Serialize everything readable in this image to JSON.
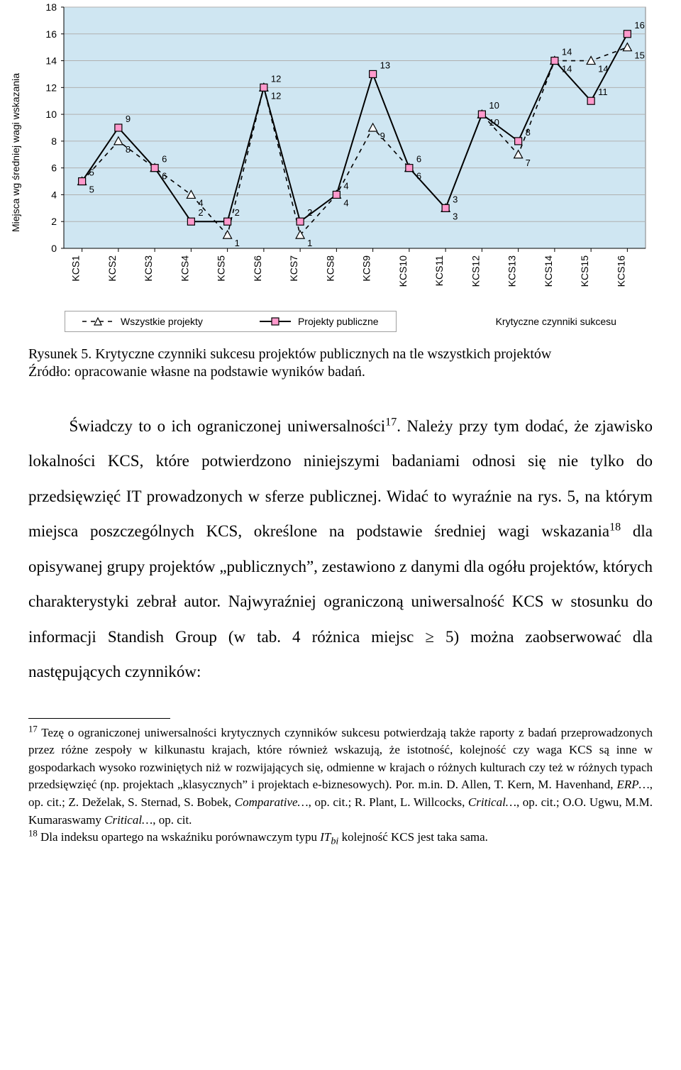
{
  "chart": {
    "type": "line",
    "background_color": "#cfe6f2",
    "grid_color": "#b0b0b0",
    "border_color": "#808080",
    "ylabel": "Miejsca wg średniej wagi wskazania",
    "ylabel_fontsize": 14,
    "axis_font": "Arial",
    "axis_fontsize": 14,
    "ylim": [
      0,
      18
    ],
    "ytick_step": 2,
    "categories": [
      "KCS1",
      "KCS2",
      "KCS3",
      "KCS4",
      "KCS5",
      "KCS6",
      "KCS7",
      "KCS8",
      "KCS9",
      "KCS10",
      "KCS11",
      "KCS12",
      "KCS13",
      "KCS14",
      "KCS15",
      "KCS16"
    ],
    "series": [
      {
        "name": "Wszystkie projekty",
        "color": "#000000",
        "dash": "6,6",
        "line_width": 1.6,
        "marker": "triangle",
        "marker_fill": "#ffffff",
        "marker_stroke": "#000000",
        "values": [
          5,
          8,
          6,
          4,
          1,
          12,
          1,
          4,
          9,
          6,
          3,
          10,
          7,
          14,
          14,
          15
        ]
      },
      {
        "name": "Projekty publiczne",
        "color": "#000000",
        "dash": "none",
        "line_width": 2,
        "marker": "square",
        "marker_fill": "#ff99cc",
        "marker_stroke": "#000000",
        "values": [
          5,
          9,
          6,
          2,
          2,
          12,
          2,
          4,
          13,
          6,
          3,
          10,
          8,
          14,
          11,
          16
        ]
      }
    ],
    "right_label": "Krytyczne czynniki sukcesu"
  },
  "caption": {
    "fig_label": "Rysunek 5.",
    "fig_text": "Krytyczne czynniki sukcesu projektów publicznych na tle wszystkich projektów",
    "source": "Źródło: opracowanie własne na podstawie wyników badań."
  },
  "body": {
    "paragraph": "Świadczy to o ich ograniczonej uniwersalności<sup>17</sup>. Należy przy tym dodać, że zjawisko lokalności KCS, które potwierdzono niniejszymi badaniami odnosi się nie tylko do przedsięwzięć IT prowadzonych w sferze publicznej. Widać to wyraźnie na rys. 5, na którym miejsca poszczególnych KCS, określone na podstawie średniej wagi wskazania<sup>18</sup> dla opisywanej grupy projektów „publicznych”, zestawiono z danymi dla ogółu projektów, których charakterystyki zebrał autor. Najwyraźniej ograniczoną uniwersalność KCS w stosunku do informacji Standish Group (w tab. 4 różnica miejsc ≥ 5) można zaobserwować dla następujących czynników:"
  },
  "footnotes": {
    "f17": "<sup>17</sup> Tezę o ograniczonej uniwersalności krytycznych czynników sukcesu potwierdzają także raporty z badań przeprowadzonych przez różne zespoły w kilkunastu krajach, które również wskazują, że istotność, kolejność czy waga KCS są inne w gospodarkach wysoko rozwiniętych niż w rozwijających się, odmienne w krajach o różnych kulturach czy też w różnych typach przedsięwzięć (np. projektach „klasycznych” i projektach e-biznesowych). Por. m.in. D. Allen, T. Kern, M. Havenhand, <em>ERP…</em>, op. cit.; Z. Deželak, S. Sternad, S. Bobek, <em>Comparative…</em>, op. cit.; R. Plant, L. Willcocks, <em>Critical…</em>, op. cit.; O.O. Ugwu, M.M. Kumaraswamy <em>Critical…</em>, op. cit.",
    "f18": "<sup>18</sup> Dla indeksu opartego na wskaźniku porównawczym typu <em>IT<sub>bi</sub></em> kolejność KCS jest taka sama."
  }
}
